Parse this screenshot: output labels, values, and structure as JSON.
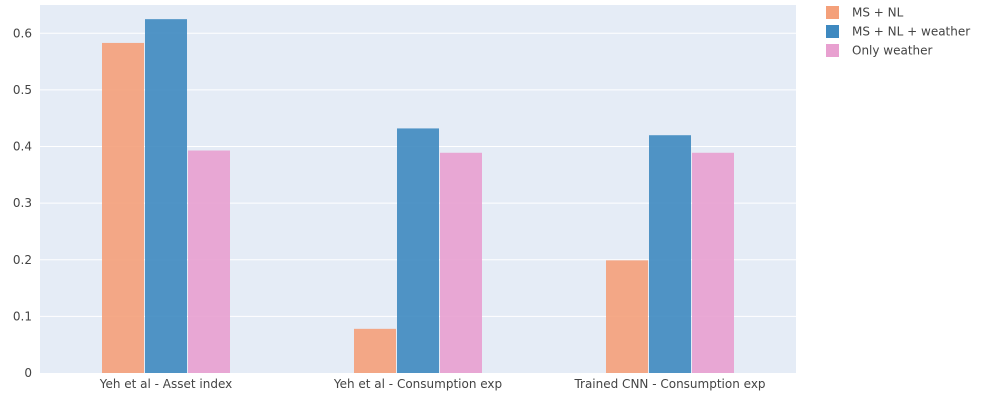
{
  "chart_data": {
    "type": "bar",
    "categories": [
      "Yeh et al - Asset index",
      "Yeh et al - Consumption exp",
      "Trained CNN - Consumption exp"
    ],
    "series": [
      {
        "name": "MS + NL",
        "color": "#f4a07a",
        "values": [
          0.583,
          0.078,
          0.199
        ]
      },
      {
        "name": "MS + NL + weather",
        "color": "#3e89c0",
        "values": [
          0.625,
          0.432,
          0.42
        ]
      },
      {
        "name": "Only weather",
        "color": "#e8a0d0",
        "values": [
          0.393,
          0.389,
          0.389
        ]
      }
    ],
    "ylim": [
      0,
      0.65
    ],
    "yticks": [
      "0",
      "0.1",
      "0.2",
      "0.3",
      "0.4",
      "0.5",
      "0.6"
    ],
    "ytick_values": [
      0,
      0.1,
      0.2,
      0.3,
      0.4,
      0.5,
      0.6
    ],
    "grid": true,
    "legend_position": "top-right",
    "plot_background": "#e5ecf6"
  }
}
